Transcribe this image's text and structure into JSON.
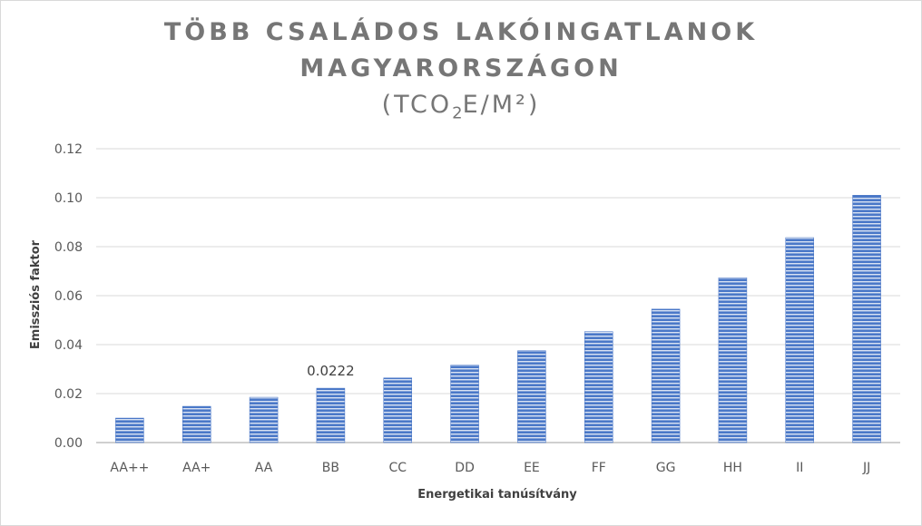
{
  "chart_data": {
    "type": "bar",
    "title_line1": "TÖBB CSALÁDOS LAKÓINGATLANOK",
    "title_line2": "MAGYARORSZÁGON",
    "title_unit_prefix": "(TCO",
    "title_unit_sub": "2",
    "title_unit_suffix": "E/M²)",
    "xlabel": "Energetikai tanúsítvány",
    "ylabel": "Emissziós faktor",
    "categories": [
      "AA++",
      "AA+",
      "AA",
      "BB",
      "CC",
      "DD",
      "EE",
      "FF",
      "GG",
      "HH",
      "II",
      "JJ"
    ],
    "values": [
      0.01,
      0.0148,
      0.0185,
      0.0222,
      0.0264,
      0.0316,
      0.0375,
      0.0453,
      0.0545,
      0.0673,
      0.0837,
      0.101
    ],
    "data_labels": [
      {
        "category": "BB",
        "text": "0.0222"
      }
    ],
    "ylim": [
      0,
      0.12
    ],
    "yticks": [
      "0.00",
      "0.02",
      "0.04",
      "0.06",
      "0.08",
      "0.10",
      "0.12"
    ],
    "grid": true,
    "bar_color": "#4472c4",
    "bar_stripe_color": "#dae3f3"
  }
}
